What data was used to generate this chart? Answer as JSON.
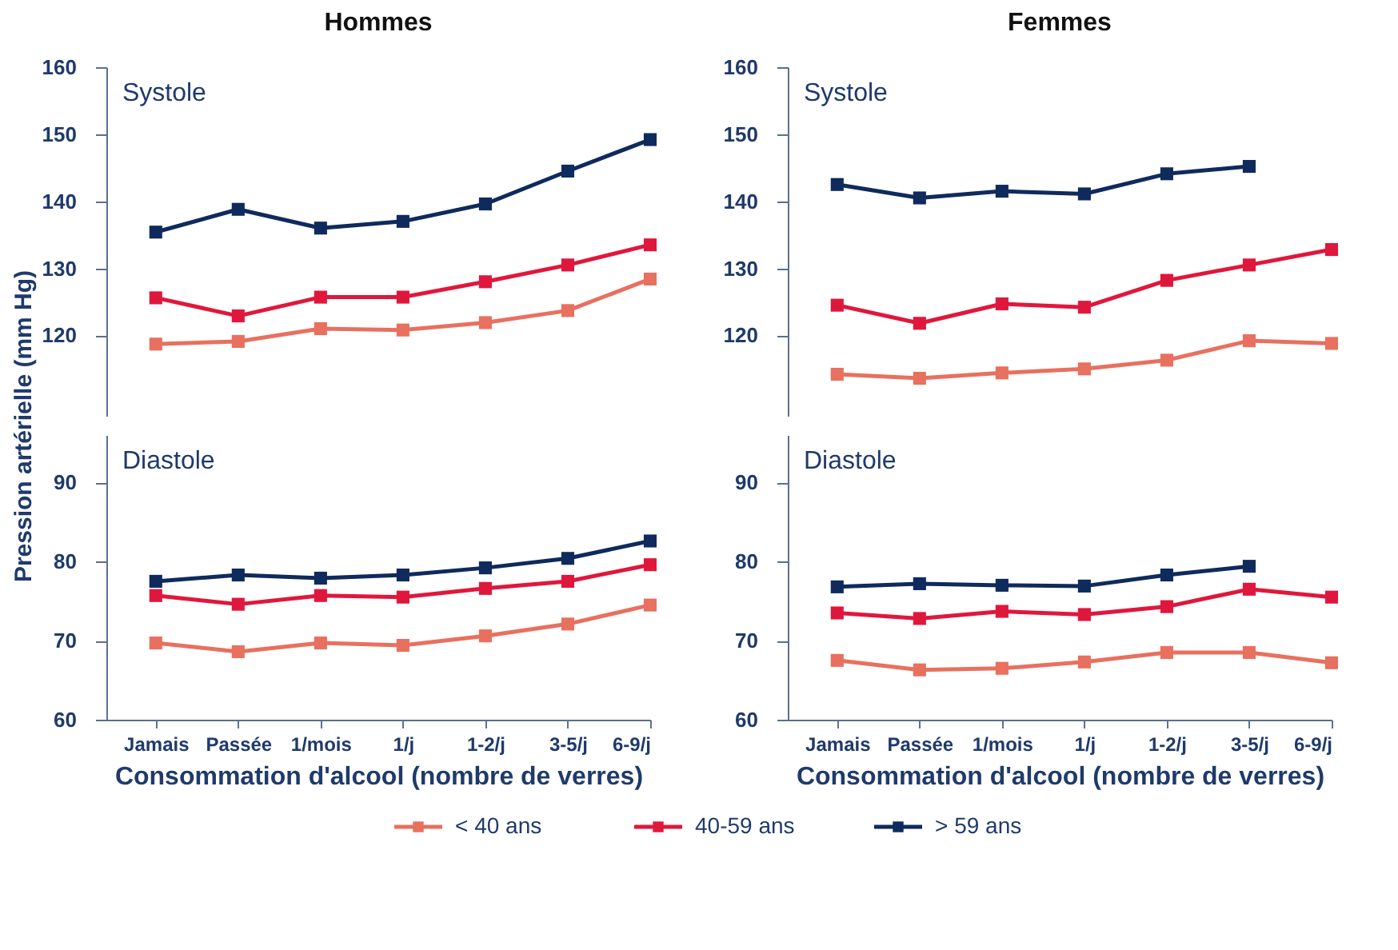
{
  "chart_data": [
    {
      "type": "line",
      "title": "Hommes",
      "ylabel": "Pression artérielle (mm Hg)",
      "annotations": [
        "Systole"
      ],
      "categories": [
        null,
        null,
        null,
        null,
        null,
        null,
        null
      ],
      "ylim": [
        108,
        160
      ],
      "yticks": [
        120,
        130,
        140,
        150,
        160
      ],
      "tick_labels": "y",
      "marker": "square",
      "grid": false,
      "legend": "bottom",
      "series": [
        {
          "name": "< 40 ans",
          "color": "#e8705f",
          "values": [
            118.7,
            119.1,
            121.0,
            120.8,
            121.9,
            123.7,
            128.4
          ]
        },
        {
          "name": "40-59 ans",
          "color": "#e0173c",
          "values": [
            125.6,
            122.9,
            125.7,
            125.7,
            128.0,
            130.5,
            133.5
          ]
        },
        {
          "name": "> 59 ans",
          "color": "#0f2a5c",
          "values": [
            135.4,
            138.8,
            136.0,
            137.0,
            139.6,
            144.5,
            149.2
          ]
        }
      ]
    },
    {
      "type": "line",
      "title": "Femmes",
      "annotations": [
        "Systole"
      ],
      "categories": [
        null,
        null,
        null,
        null,
        null,
        null,
        null
      ],
      "ylim": [
        108,
        160
      ],
      "yticks": [
        120,
        130,
        140,
        150,
        160
      ],
      "tick_labels": "y",
      "marker": "square",
      "grid": false,
      "series": [
        {
          "color": "#e8705f",
          "values": [
            114.2,
            113.6,
            114.4,
            115.0,
            116.3,
            119.2,
            118.8
          ]
        },
        {
          "color": "#e0173c",
          "values": [
            124.5,
            121.8,
            124.7,
            124.2,
            128.2,
            130.5,
            132.8
          ]
        },
        {
          "color": "#0f2a5c",
          "values": [
            142.5,
            140.5,
            141.5,
            141.1,
            144.1,
            145.2,
            null
          ]
        }
      ]
    },
    {
      "type": "line",
      "xlabel": "Consommation d'alcool (nombre de verres)",
      "annotations": [
        "Diastole"
      ],
      "categories": [
        "Jamais",
        "Passée",
        "1/mois",
        "1/j",
        "1-2/j",
        "3-5/j",
        "6-9/j"
      ],
      "ylim": [
        60,
        96
      ],
      "yticks": [
        60,
        70,
        80,
        90
      ],
      "marker": "square",
      "grid": false,
      "series": [
        {
          "color": "#e8705f",
          "values": [
            69.7,
            68.6,
            69.7,
            69.4,
            70.6,
            72.1,
            74.5
          ]
        },
        {
          "color": "#e0173c",
          "values": [
            75.7,
            74.6,
            75.7,
            75.5,
            76.6,
            77.5,
            79.6
          ]
        },
        {
          "color": "#0f2a5c",
          "values": [
            77.5,
            78.3,
            77.9,
            78.3,
            79.2,
            80.4,
            82.6
          ]
        }
      ]
    },
    {
      "type": "line",
      "xlabel": "Consommation d'alcool (nombre de verres)",
      "annotations": [
        "Diastole"
      ],
      "categories": [
        "Jamais",
        "Passée",
        "1/mois",
        "1/j",
        "1-2/j",
        "3-5/j",
        "6-9/j"
      ],
      "ylim": [
        60,
        96
      ],
      "yticks": [
        60,
        70,
        80,
        90
      ],
      "marker": "square",
      "grid": false,
      "series": [
        {
          "color": "#e8705f",
          "values": [
            67.5,
            66.3,
            66.5,
            67.3,
            68.5,
            68.5,
            67.2
          ]
        },
        {
          "color": "#e0173c",
          "values": [
            73.5,
            72.8,
            73.7,
            73.3,
            74.3,
            76.5,
            75.5
          ]
        },
        {
          "color": "#0f2a5c",
          "values": [
            76.8,
            77.2,
            77.0,
            76.9,
            78.3,
            79.4,
            null
          ]
        }
      ]
    }
  ]
}
